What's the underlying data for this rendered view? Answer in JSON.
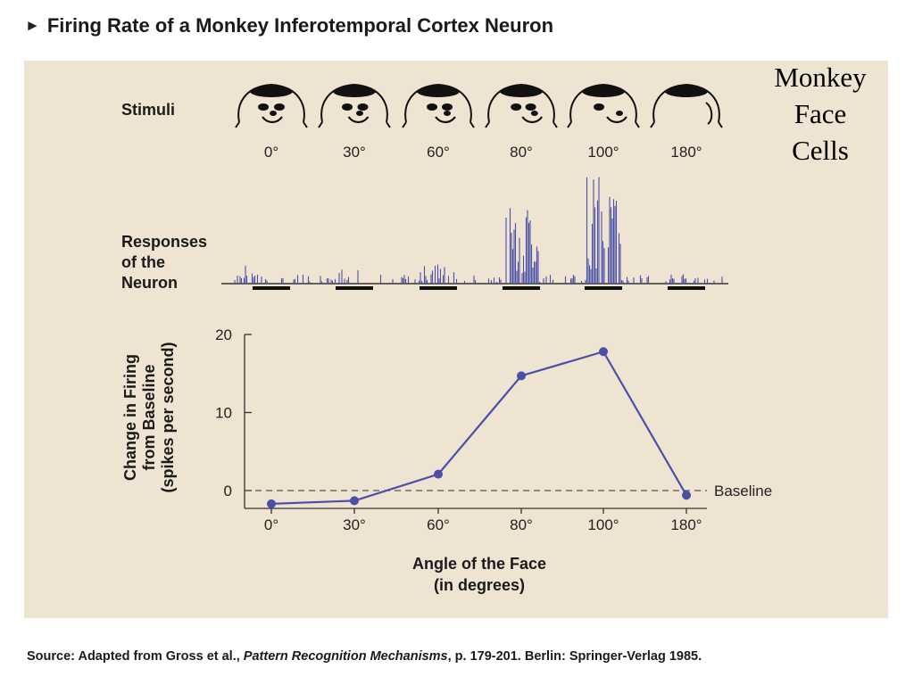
{
  "title": {
    "arrow": "►",
    "text": "Firing Rate of a Monkey Inferotemporal Cortex Neuron"
  },
  "side_note": [
    "Monkey",
    "Face",
    "Cells"
  ],
  "stimuli": {
    "label": "Stimuli",
    "icon": "monkey-head-icon",
    "angles": [
      "0°",
      "30°",
      "60°",
      "80°",
      "100°",
      "180°"
    ]
  },
  "responses": {
    "label_lines": [
      "Responses",
      "of the",
      "Neuron"
    ]
  },
  "source": {
    "prefix": "Source: Adapted from Gross et al., ",
    "book": "Pattern Recognition Mechanisms",
    "suffix": ", p. 179-201. Berlin: Springer-Verlag 1985."
  },
  "colors": {
    "panel": "#efe4d2",
    "series": "#4a4fa8",
    "axis": "#333333"
  },
  "chart_data": {
    "type": "line",
    "categories": [
      "0°",
      "30°",
      "60°",
      "80°",
      "100°",
      "180°"
    ],
    "series": [
      {
        "values": [
          -1.7,
          -1.3,
          2.1,
          14.7,
          17.8,
          -0.6
        ]
      }
    ],
    "ylim": [
      -2,
      20
    ],
    "yticks": [
      0,
      10,
      20
    ],
    "ylabel_lines": [
      "Change in Firing",
      "from Baseline",
      "(spikes per second)"
    ],
    "xlabel_lines": [
      "Angle of the Face",
      "(in degrees)"
    ],
    "baseline": {
      "value": 0,
      "label": "Baseline"
    },
    "grid": false
  }
}
